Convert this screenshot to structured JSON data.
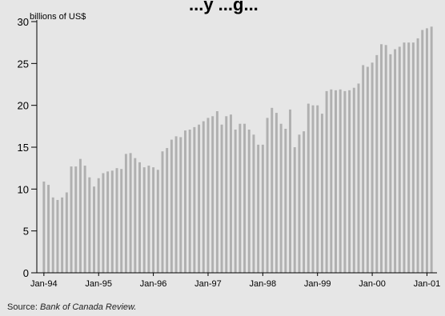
{
  "title_fragment": "...y  ...g...",
  "source": {
    "prefix": "Source: ",
    "publication": "Bank of Canada Review."
  },
  "chart_data": {
    "type": "bar",
    "ylabel": "billions of US$",
    "xlabel": "",
    "ylim": [
      0,
      30
    ],
    "y_ticks": [
      0,
      5,
      10,
      15,
      20,
      25,
      30
    ],
    "x_tick_labels": [
      "Jan-94",
      "Jan-95",
      "Jan-96",
      "Jan-97",
      "Jan-98",
      "Jan-99",
      "Jan-00",
      "Jan-01"
    ],
    "x_tick_indices": [
      0,
      12,
      24,
      36,
      48,
      60,
      72,
      84
    ],
    "bar_color": "#b0b0b0",
    "values": [
      10.9,
      10.5,
      9.0,
      8.7,
      9.0,
      9.6,
      12.7,
      12.7,
      13.6,
      12.8,
      11.4,
      10.3,
      11.3,
      11.9,
      12.1,
      12.2,
      12.5,
      12.4,
      14.2,
      14.3,
      13.7,
      13.2,
      12.6,
      12.8,
      12.6,
      12.3,
      14.5,
      14.9,
      15.9,
      16.3,
      16.2,
      17.0,
      17.1,
      17.4,
      17.7,
      18.1,
      18.5,
      18.7,
      19.3,
      17.7,
      18.7,
      18.9,
      17.1,
      17.8,
      17.8,
      17.1,
      16.5,
      15.3,
      15.3,
      18.5,
      19.7,
      19.1,
      17.8,
      17.2,
      19.5,
      15.0,
      16.5,
      16.9,
      20.2,
      20.0,
      20.0,
      19.0,
      21.7,
      21.9,
      21.8,
      21.9,
      21.7,
      21.8,
      22.1,
      22.6,
      24.8,
      24.6,
      25.1,
      26.0,
      27.3,
      27.2,
      26.1,
      26.7,
      27.0,
      27.5,
      27.5,
      27.5,
      28.0,
      29.0,
      29.2,
      29.4
    ]
  }
}
